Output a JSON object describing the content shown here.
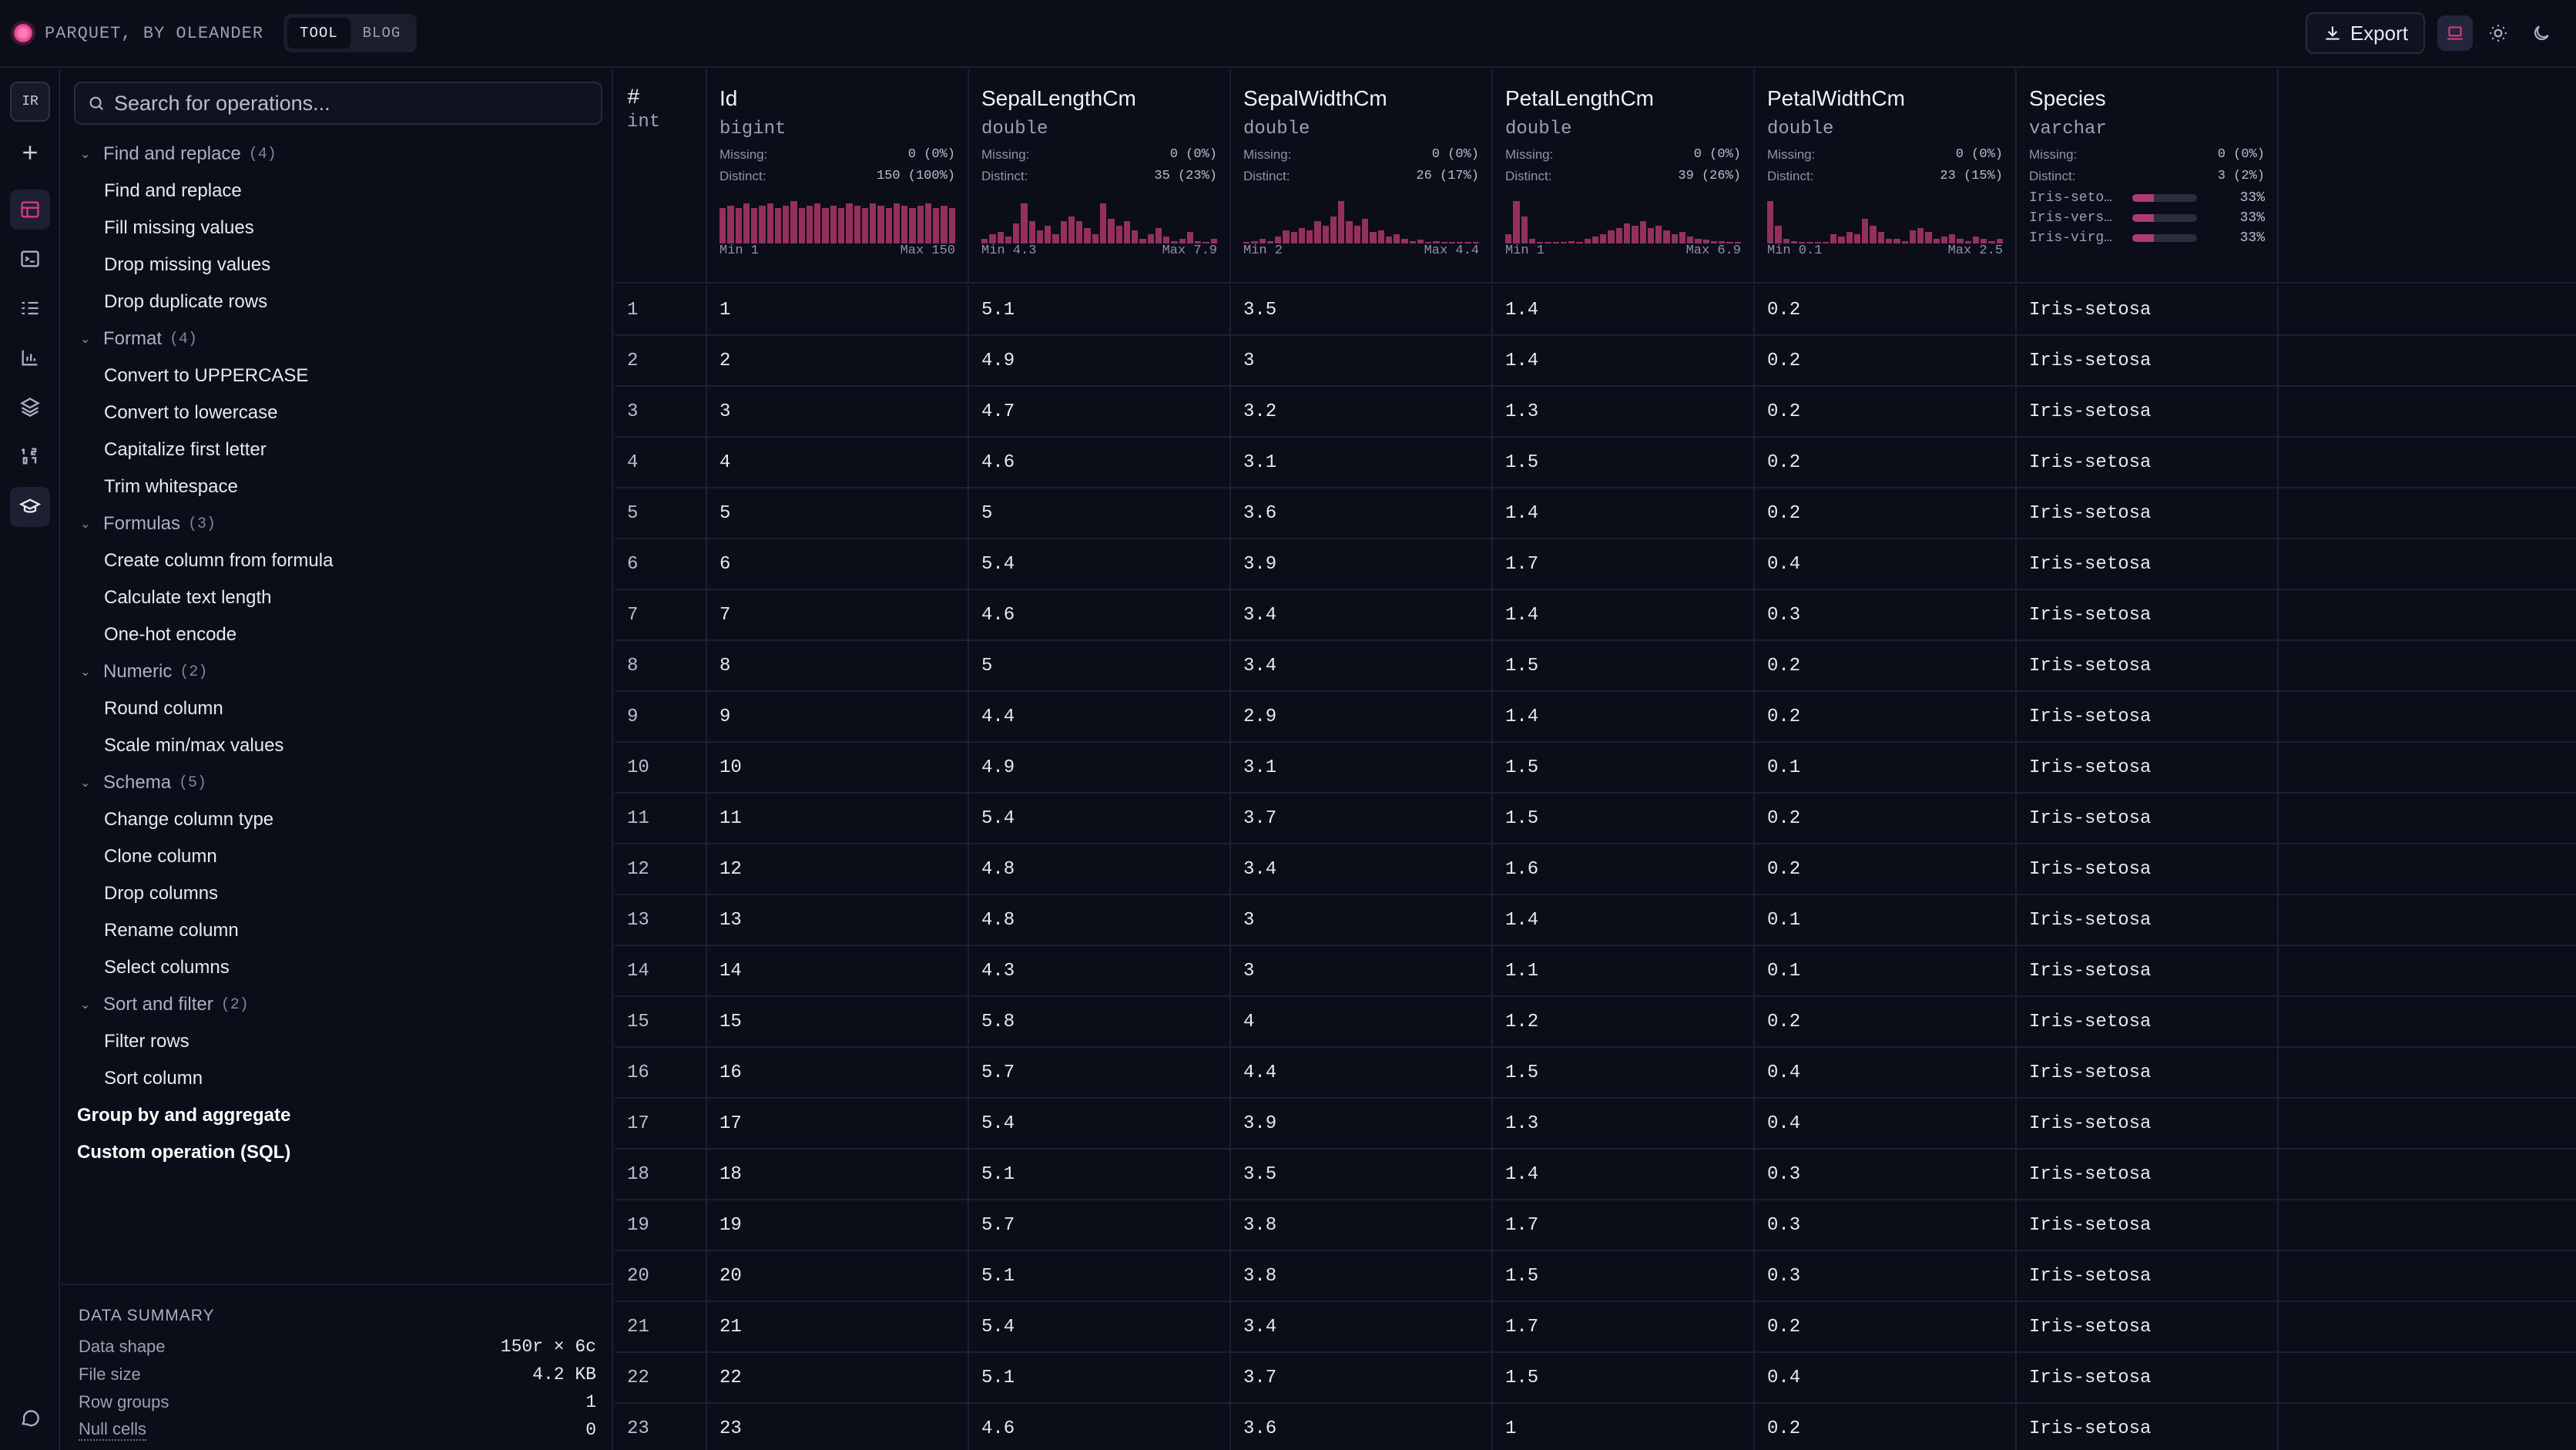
{
  "app": {
    "brand": "PARQUET, BY OLEANDER",
    "nav_tabs": [
      {
        "label": "TOOL",
        "active": true
      },
      {
        "label": "BLOG",
        "active": false
      }
    ],
    "export_label": "Export",
    "accent_color": "#d63a83"
  },
  "rail": {
    "avatar": "IR",
    "icons": [
      "add-icon",
      "table-icon",
      "terminal-icon",
      "list-checks-icon",
      "bar-chart-icon",
      "layers-icon",
      "numbers-icon",
      "graduation-cap-icon",
      "chat-icon"
    ]
  },
  "sidebar": {
    "search_placeholder": "Search for operations...",
    "groups": [
      {
        "label": "Find and replace",
        "count": "(4)",
        "items": [
          "Find and replace",
          "Fill missing values",
          "Drop missing values",
          "Drop duplicate rows"
        ]
      },
      {
        "label": "Format",
        "count": "(4)",
        "items": [
          "Convert to UPPERCASE",
          "Convert to lowercase",
          "Capitalize first letter",
          "Trim whitespace"
        ]
      },
      {
        "label": "Formulas",
        "count": "(3)",
        "items": [
          "Create column from formula",
          "Calculate text length",
          "One-hot encode"
        ]
      },
      {
        "label": "Numeric",
        "count": "(2)",
        "items": [
          "Round column",
          "Scale min/max values"
        ]
      },
      {
        "label": "Schema",
        "count": "(5)",
        "items": [
          "Change column type",
          "Clone column",
          "Drop columns",
          "Rename column",
          "Select columns"
        ]
      },
      {
        "label": "Sort and filter",
        "count": "(2)",
        "items": [
          "Filter rows",
          "Sort column"
        ]
      }
    ],
    "top_items": [
      "Group by and aggregate",
      "Custom operation (SQL)"
    ],
    "summary": {
      "title": "DATA SUMMARY",
      "rows": [
        {
          "label": "Data shape",
          "value": "150r × 6c"
        },
        {
          "label": "File size",
          "value": "4.2 KB"
        },
        {
          "label": "Row groups",
          "value": "1"
        },
        {
          "label": "Null cells",
          "value": "0"
        }
      ]
    }
  },
  "table": {
    "rownum_header": {
      "name": "#",
      "type": "int"
    },
    "missing_label": "Missing:",
    "distinct_label": "Distinct:",
    "columns": [
      {
        "name": "Id",
        "type": "bigint",
        "missing": "0 (0%)",
        "distinct": "150 (100%)",
        "min": "Min 1",
        "max": "Max 150",
        "hist": [
          0.8,
          0.85,
          0.8,
          0.9,
          0.8,
          0.85,
          0.9,
          0.8,
          0.85,
          0.95,
          0.8,
          0.85,
          0.9,
          0.8,
          0.85,
          0.8,
          0.9,
          0.85,
          0.8,
          0.9,
          0.85,
          0.8,
          0.9,
          0.85,
          0.8,
          0.85,
          0.9,
          0.8,
          0.85,
          0.8
        ]
      },
      {
        "name": "SepalLengthCm",
        "type": "double",
        "missing": "0 (0%)",
        "distinct": "35 (23%)",
        "min": "Min 4.3",
        "max": "Max 7.9",
        "hist": [
          0.1,
          0.2,
          0.25,
          0.15,
          0.45,
          0.9,
          0.5,
          0.3,
          0.4,
          0.2,
          0.5,
          0.6,
          0.5,
          0.35,
          0.2,
          0.9,
          0.55,
          0.4,
          0.5,
          0.3,
          0.1,
          0.2,
          0.35,
          0.15,
          0.05,
          0.1,
          0.25,
          0.05,
          0.02,
          0.1
        ]
      },
      {
        "name": "SepalWidthCm",
        "type": "double",
        "missing": "0 (0%)",
        "distinct": "26 (17%)",
        "min": "Min 2",
        "max": "Max 4.4",
        "hist": [
          0.02,
          0.05,
          0.1,
          0.05,
          0.15,
          0.3,
          0.25,
          0.35,
          0.3,
          0.5,
          0.4,
          0.6,
          0.95,
          0.5,
          0.4,
          0.55,
          0.25,
          0.3,
          0.15,
          0.2,
          0.1,
          0.05,
          0.08,
          0.02,
          0.05,
          0.02,
          0.01,
          0.02,
          0.01,
          0.02
        ]
      },
      {
        "name": "PetalLengthCm",
        "type": "double",
        "missing": "0 (0%)",
        "distinct": "39 (26%)",
        "min": "Min 1",
        "max": "Max 6.9",
        "hist": [
          0.2,
          0.95,
          0.6,
          0.1,
          0.02,
          0.02,
          0.01,
          0.02,
          0.05,
          0.02,
          0.1,
          0.15,
          0.2,
          0.3,
          0.35,
          0.45,
          0.4,
          0.5,
          0.35,
          0.4,
          0.3,
          0.2,
          0.25,
          0.15,
          0.1,
          0.08,
          0.05,
          0.05,
          0.02,
          0.03
        ]
      },
      {
        "name": "PetalWidthCm",
        "type": "double",
        "missing": "0 (0%)",
        "distinct": "23 (15%)",
        "min": "Min 0.1",
        "max": "Max 2.5",
        "hist": [
          0.95,
          0.4,
          0.1,
          0.05,
          0.01,
          0.01,
          0.02,
          0.01,
          0.2,
          0.15,
          0.25,
          0.2,
          0.55,
          0.4,
          0.25,
          0.1,
          0.1,
          0.05,
          0.3,
          0.35,
          0.25,
          0.1,
          0.15,
          0.2,
          0.1,
          0.05,
          0.15,
          0.1,
          0.05,
          0.1
        ]
      },
      {
        "name": "Species",
        "type": "varchar",
        "missing": "0 (0%)",
        "distinct": "3 (2%)",
        "categories": [
          {
            "label": "Iris-seto…",
            "pct": "33%",
            "fill": 0.33
          },
          {
            "label": "Iris-vers…",
            "pct": "33%",
            "fill": 0.33
          },
          {
            "label": "Iris-virg…",
            "pct": "33%",
            "fill": 0.33
          }
        ]
      }
    ],
    "rows": [
      [
        "1",
        "1",
        "5.1",
        "3.5",
        "1.4",
        "0.2",
        "Iris-setosa"
      ],
      [
        "2",
        "2",
        "4.9",
        "3",
        "1.4",
        "0.2",
        "Iris-setosa"
      ],
      [
        "3",
        "3",
        "4.7",
        "3.2",
        "1.3",
        "0.2",
        "Iris-setosa"
      ],
      [
        "4",
        "4",
        "4.6",
        "3.1",
        "1.5",
        "0.2",
        "Iris-setosa"
      ],
      [
        "5",
        "5",
        "5",
        "3.6",
        "1.4",
        "0.2",
        "Iris-setosa"
      ],
      [
        "6",
        "6",
        "5.4",
        "3.9",
        "1.7",
        "0.4",
        "Iris-setosa"
      ],
      [
        "7",
        "7",
        "4.6",
        "3.4",
        "1.4",
        "0.3",
        "Iris-setosa"
      ],
      [
        "8",
        "8",
        "5",
        "3.4",
        "1.5",
        "0.2",
        "Iris-setosa"
      ],
      [
        "9",
        "9",
        "4.4",
        "2.9",
        "1.4",
        "0.2",
        "Iris-setosa"
      ],
      [
        "10",
        "10",
        "4.9",
        "3.1",
        "1.5",
        "0.1",
        "Iris-setosa"
      ],
      [
        "11",
        "11",
        "5.4",
        "3.7",
        "1.5",
        "0.2",
        "Iris-setosa"
      ],
      [
        "12",
        "12",
        "4.8",
        "3.4",
        "1.6",
        "0.2",
        "Iris-setosa"
      ],
      [
        "13",
        "13",
        "4.8",
        "3",
        "1.4",
        "0.1",
        "Iris-setosa"
      ],
      [
        "14",
        "14",
        "4.3",
        "3",
        "1.1",
        "0.1",
        "Iris-setosa"
      ],
      [
        "15",
        "15",
        "5.8",
        "4",
        "1.2",
        "0.2",
        "Iris-setosa"
      ],
      [
        "16",
        "16",
        "5.7",
        "4.4",
        "1.5",
        "0.4",
        "Iris-setosa"
      ],
      [
        "17",
        "17",
        "5.4",
        "3.9",
        "1.3",
        "0.4",
        "Iris-setosa"
      ],
      [
        "18",
        "18",
        "5.1",
        "3.5",
        "1.4",
        "0.3",
        "Iris-setosa"
      ],
      [
        "19",
        "19",
        "5.7",
        "3.8",
        "1.7",
        "0.3",
        "Iris-setosa"
      ],
      [
        "20",
        "20",
        "5.1",
        "3.8",
        "1.5",
        "0.3",
        "Iris-setosa"
      ],
      [
        "21",
        "21",
        "5.4",
        "3.4",
        "1.7",
        "0.2",
        "Iris-setosa"
      ],
      [
        "22",
        "22",
        "5.1",
        "3.7",
        "1.5",
        "0.4",
        "Iris-setosa"
      ],
      [
        "23",
        "23",
        "4.6",
        "3.6",
        "1",
        "0.2",
        "Iris-setosa"
      ]
    ]
  }
}
